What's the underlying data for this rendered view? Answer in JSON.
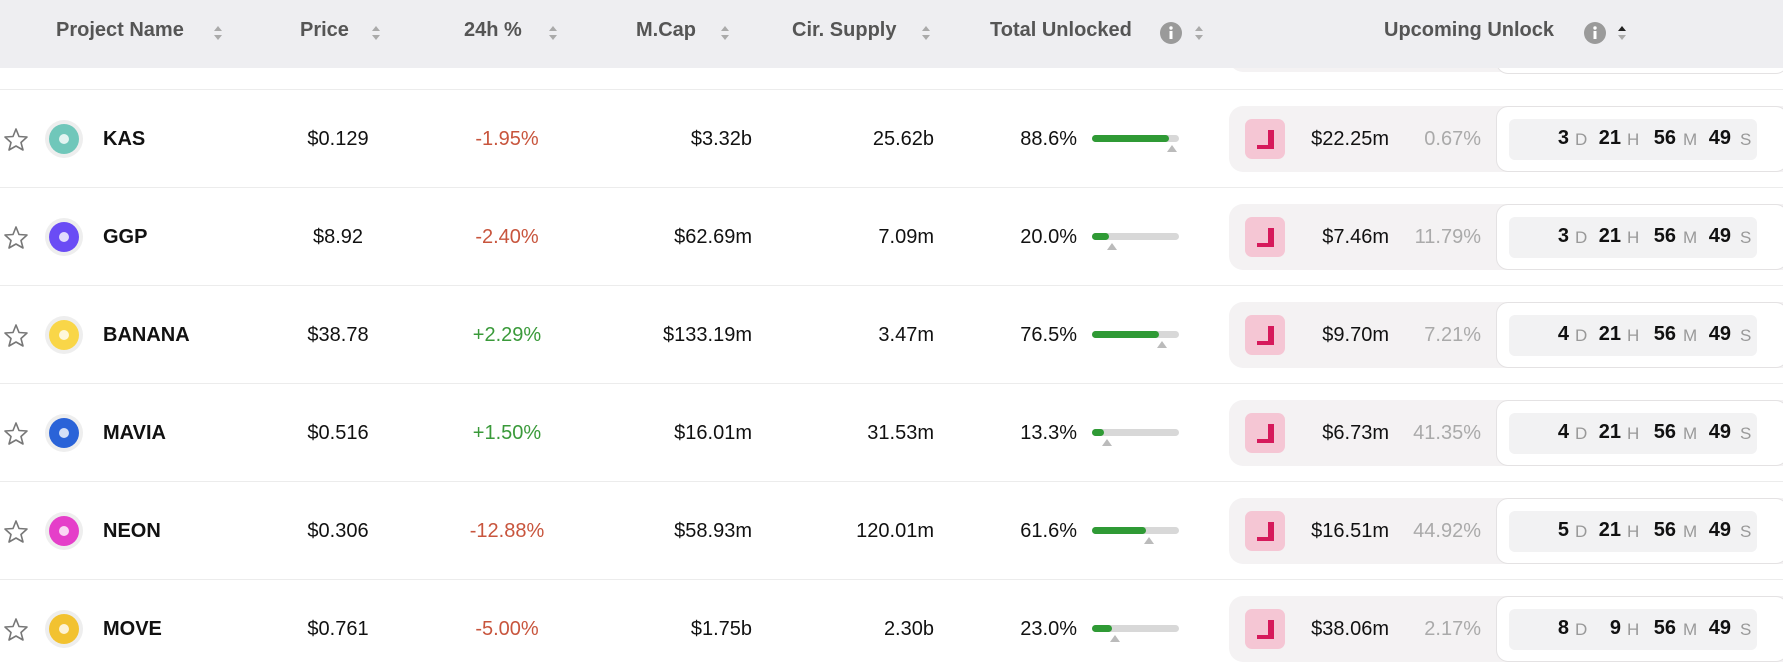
{
  "table": {
    "headers": [
      "Project Name",
      "Price",
      "24h %",
      "M.Cap",
      "Cir. Supply",
      "Total Unlocked",
      "Upcoming Unlock"
    ],
    "countdown_units": [
      "D",
      "H",
      "M",
      "S"
    ],
    "rows": [
      {
        "name": "KAS",
        "icon_color": "#70c7ba",
        "price": "$0.129",
        "change": "-1.95%",
        "direction": "down",
        "market_cap": "$3.32b",
        "supply": "25.62b",
        "total_unlocked": {
          "value": 88.6,
          "label": "88.6%"
        },
        "unlock_value": "$22.25m",
        "unlock_pct": "0.67%",
        "countdown": [
          "3",
          "21",
          "56",
          "49"
        ]
      },
      {
        "name": "GGP",
        "icon_color": "#6a4cf5",
        "price": "$8.92",
        "change": "-2.40%",
        "direction": "down",
        "market_cap": "$62.69m",
        "supply": "7.09m",
        "total_unlocked": {
          "value": 20.0,
          "label": "20.0%"
        },
        "unlock_value": "$7.46m",
        "unlock_pct": "11.79%",
        "countdown": [
          "3",
          "21",
          "56",
          "49"
        ]
      },
      {
        "name": "BANANA",
        "icon_color": "#f9d648",
        "price": "$38.78",
        "change": "+2.29%",
        "direction": "up",
        "market_cap": "$133.19m",
        "supply": "3.47m",
        "total_unlocked": {
          "value": 76.5,
          "label": "76.5%"
        },
        "unlock_value": "$9.70m",
        "unlock_pct": "7.21%",
        "countdown": [
          "4",
          "21",
          "56",
          "49"
        ]
      },
      {
        "name": "MAVIA",
        "icon_color": "#2a63d8",
        "price": "$0.516",
        "change": "+1.50%",
        "direction": "up",
        "market_cap": "$16.01m",
        "supply": "31.53m",
        "total_unlocked": {
          "value": 13.3,
          "label": "13.3%"
        },
        "unlock_value": "$6.73m",
        "unlock_pct": "41.35%",
        "countdown": [
          "4",
          "21",
          "56",
          "49"
        ]
      },
      {
        "name": "NEON",
        "icon_color": "#e53fc9",
        "price": "$0.306",
        "change": "-12.88%",
        "direction": "down",
        "market_cap": "$58.93m",
        "supply": "120.01m",
        "total_unlocked": {
          "value": 61.6,
          "label": "61.6%"
        },
        "unlock_value": "$16.51m",
        "unlock_pct": "44.92%",
        "countdown": [
          "5",
          "21",
          "56",
          "49"
        ]
      },
      {
        "name": "MOVE",
        "icon_color": "#f2c230",
        "price": "$0.761",
        "change": "-5.00%",
        "direction": "down",
        "market_cap": "$1.75b",
        "supply": "2.30b",
        "total_unlocked": {
          "value": 23.0,
          "label": "23.0%"
        },
        "unlock_value": "$38.06m",
        "unlock_pct": "2.17%",
        "countdown": [
          "8",
          "9",
          "56",
          "49"
        ]
      }
    ]
  }
}
